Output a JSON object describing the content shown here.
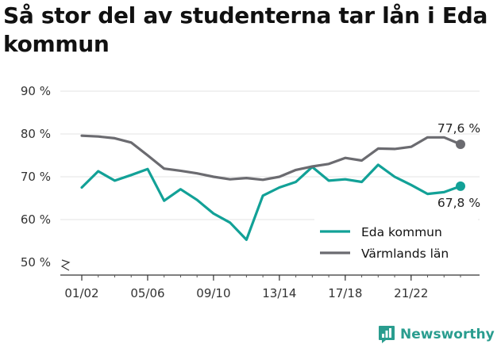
{
  "title": "Så stor del av studenterna tar lån i Eda kommun",
  "brand": {
    "name": "Newsworthy",
    "icon": "bar-chart-speech-icon",
    "color": "#2a9d8f"
  },
  "chart_data": {
    "type": "line",
    "title": "Så stor del av studenterna tar lån i Eda kommun",
    "ylim": [
      50,
      90
    ],
    "y_ticks": [
      "50 %",
      "60 %",
      "70 %",
      "80 %",
      "90 %"
    ],
    "y_tick_values": [
      50,
      60,
      70,
      80,
      90
    ],
    "axis_break": true,
    "grid": true,
    "x": [
      "01/02",
      "02/03",
      "03/04",
      "04/05",
      "05/06",
      "06/07",
      "07/08",
      "08/09",
      "09/10",
      "10/11",
      "11/12",
      "12/13",
      "13/14",
      "14/15",
      "15/16",
      "16/17",
      "17/18",
      "18/19",
      "19/20",
      "20/21",
      "21/22",
      "22/23",
      "23/24",
      "24/25"
    ],
    "x_ticks": [
      "01/02",
      "05/06",
      "09/10",
      "13/14",
      "17/18",
      "21/22"
    ],
    "legend_position": "bottom-right",
    "series": [
      {
        "name": "Eda kommun",
        "color": "#12a197",
        "values": [
          67.5,
          71.3,
          69.1,
          70.4,
          71.8,
          64.4,
          67.1,
          64.6,
          61.4,
          59.3,
          55.3,
          65.6,
          67.5,
          68.8,
          72.3,
          69.1,
          69.4,
          68.8,
          72.8,
          70.0,
          68.1,
          66.0,
          66.4,
          67.8
        ],
        "end_label": "67,8 %"
      },
      {
        "name": "Värmlands län",
        "color": "#6b6b70",
        "values": [
          79.6,
          79.4,
          79.0,
          78.0,
          75.0,
          71.9,
          71.4,
          70.8,
          70.0,
          69.4,
          69.7,
          69.3,
          70.0,
          71.6,
          72.4,
          73.0,
          74.4,
          73.8,
          76.6,
          76.5,
          77.0,
          79.2,
          79.2,
          77.6
        ],
        "end_label": "77,6 %"
      }
    ]
  }
}
